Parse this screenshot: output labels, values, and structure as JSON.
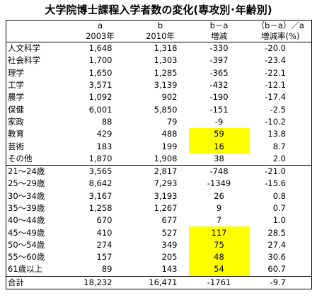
{
  "title": "大学院博士課程入学者数の変化(専攻別･年齢別)",
  "table": {
    "header": [
      [
        "",
        "a",
        "b",
        "b－a",
        "（b－a）／a"
      ],
      [
        "",
        "2003年",
        "2010年",
        "増減",
        "増減率(%)"
      ]
    ],
    "sections": [
      {
        "rows": [
          {
            "cells": [
              "人文科学",
              "1,648",
              "1,318",
              "-330",
              "-20.0"
            ]
          },
          {
            "cells": [
              "社会科学",
              "1,700",
              "1,303",
              "-397",
              "-23.4"
            ]
          },
          {
            "cells": [
              "理学",
              "1,650",
              "1,285",
              "-365",
              "-22.1"
            ]
          },
          {
            "cells": [
              "工学",
              "3,571",
              "3,139",
              "-432",
              "-12.1"
            ]
          },
          {
            "cells": [
              "農学",
              "1,092",
              "902",
              "-190",
              "-17.4"
            ]
          },
          {
            "cells": [
              "保健",
              "6,001",
              "5,850",
              "-151",
              "-2.5"
            ]
          },
          {
            "cells": [
              "家政",
              "88",
              "79",
              "-9",
              "-10.2"
            ]
          },
          {
            "cells": [
              "教育",
              "429",
              "488",
              "59",
              "13.8"
            ],
            "highlight": true
          },
          {
            "cells": [
              "芸術",
              "183",
              "199",
              "16",
              "8.7"
            ],
            "highlight": true
          },
          {
            "cells": [
              "その他",
              "1,870",
              "1,908",
              "38",
              "2.0"
            ]
          }
        ]
      },
      {
        "rows": [
          {
            "cells": [
              "21～24歳",
              "3,565",
              "2,817",
              "-748",
              "-21.0"
            ]
          },
          {
            "cells": [
              "25～29歳",
              "8,642",
              "7,293",
              "-1349",
              "-15.6"
            ]
          },
          {
            "cells": [
              "30～34歳",
              "3,167",
              "3,193",
              "26",
              "0.8"
            ]
          },
          {
            "cells": [
              "35～39歳",
              "1,258",
              "1,267",
              "9",
              "0.7"
            ]
          },
          {
            "cells": [
              "40～44歳",
              "670",
              "677",
              "7",
              "1.0"
            ]
          },
          {
            "cells": [
              "45～49歳",
              "410",
              "527",
              "117",
              "28.5"
            ],
            "highlight": true
          },
          {
            "cells": [
              "50～54歳",
              "274",
              "349",
              "75",
              "27.4"
            ],
            "highlight": true
          },
          {
            "cells": [
              "55～60歳",
              "157",
              "205",
              "48",
              "30.6"
            ],
            "highlight": true
          },
          {
            "cells": [
              "61歳以上",
              "89",
              "143",
              "54",
              "60.7"
            ],
            "highlight": true
          }
        ]
      },
      {
        "rows": [
          {
            "cells": [
              "合計",
              "18,232",
              "16,471",
              "-1761",
              "-9.7"
            ]
          }
        ]
      }
    ]
  }
}
